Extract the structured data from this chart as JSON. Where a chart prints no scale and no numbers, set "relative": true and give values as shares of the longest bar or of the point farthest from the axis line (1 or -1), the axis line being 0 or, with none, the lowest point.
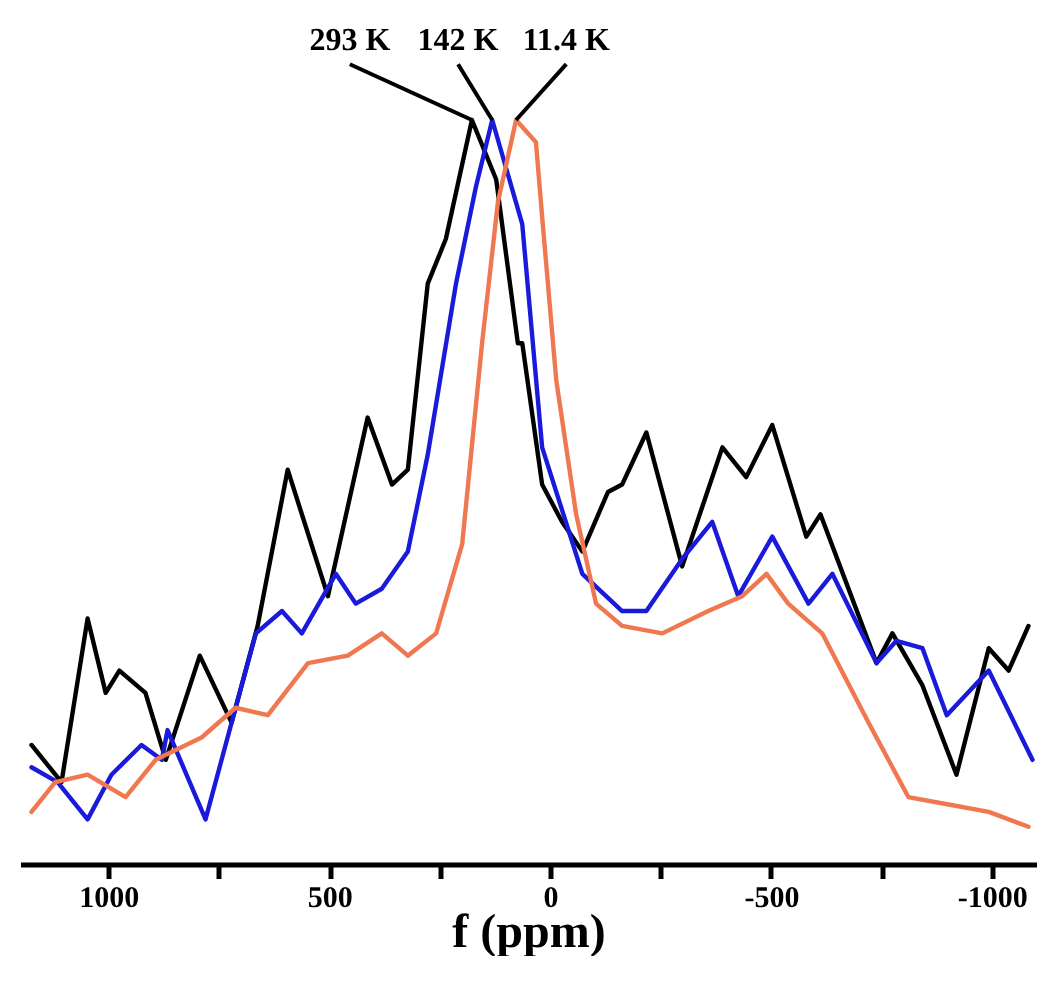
{
  "chart_data": {
    "type": "line",
    "xlabel": "f (ppm)",
    "relative": true,
    "xlim": [
      1200,
      -1100
    ],
    "xticks": [
      1000,
      {
        "value": 750,
        "label": null
      },
      500,
      {
        "value": 250,
        "label": null
      },
      0,
      {
        "value": -250,
        "label": null
      },
      -500,
      {
        "value": -750,
        "label": null
      },
      -1000
    ],
    "grid": false,
    "legend": false,
    "marker": "none",
    "line_style": "solid",
    "series": [
      {
        "name": "293 K",
        "color": "#000000",
        "x": [
          1174,
          1106,
          1047,
          1006,
          975,
          916,
          870,
          793,
          721,
          662,
          594,
          503,
          413,
          358,
          322,
          277,
          236,
          177,
          122,
          73,
          63,
          18,
          -27,
          -73,
          -131,
          -163,
          -218,
          -299,
          -390,
          -444,
          -503,
          -580,
          -612,
          -739,
          -775,
          -843,
          -920,
          -993,
          -1038,
          -1083
        ],
        "values": [
          0.16,
          0.11,
          0.33,
          0.23,
          0.26,
          0.23,
          0.14,
          0.28,
          0.19,
          0.32,
          0.53,
          0.36,
          0.6,
          0.51,
          0.53,
          0.78,
          0.84,
          1.0,
          0.92,
          0.7,
          0.7,
          0.51,
          0.46,
          0.42,
          0.5,
          0.51,
          0.58,
          0.4,
          0.56,
          0.52,
          0.59,
          0.44,
          0.47,
          0.27,
          0.31,
          0.24,
          0.12,
          0.29,
          0.26,
          0.32
        ]
      },
      {
        "name": "142 K",
        "color": "#1a1adb",
        "x": [
          1174,
          1115,
          1047,
          993,
          925,
          879,
          866,
          780,
          721,
          666,
          607,
          562,
          485,
          440,
          381,
          322,
          277,
          213,
          168,
          131,
          63,
          18,
          -73,
          -163,
          -218,
          -299,
          -367,
          -426,
          -503,
          -585,
          -639,
          -739,
          -784,
          -843,
          -898,
          -993,
          -1092
        ],
        "values": [
          0.13,
          0.11,
          0.06,
          0.12,
          0.16,
          0.14,
          0.18,
          0.06,
          0.19,
          0.31,
          0.34,
          0.31,
          0.39,
          0.35,
          0.37,
          0.42,
          0.55,
          0.78,
          0.91,
          1.0,
          0.86,
          0.56,
          0.39,
          0.34,
          0.34,
          0.41,
          0.46,
          0.36,
          0.44,
          0.35,
          0.39,
          0.27,
          0.3,
          0.29,
          0.2,
          0.26,
          0.14
        ]
      },
      {
        "name": "11.4 K",
        "color": "#f07850",
        "x": [
          1174,
          1120,
          1047,
          961,
          893,
          789,
          712,
          639,
          548,
          458,
          381,
          322,
          258,
          199,
          154,
          118,
          77,
          32,
          18,
          -14,
          -59,
          -104,
          -163,
          -254,
          -358,
          -435,
          -490,
          -539,
          -616,
          -721,
          -811,
          -902,
          -993,
          -1083
        ],
        "values": [
          0.07,
          0.11,
          0.12,
          0.09,
          0.14,
          0.17,
          0.21,
          0.2,
          0.27,
          0.28,
          0.31,
          0.28,
          0.31,
          0.43,
          0.7,
          0.89,
          1.0,
          0.97,
          0.87,
          0.65,
          0.47,
          0.35,
          0.32,
          0.31,
          0.34,
          0.36,
          0.39,
          0.35,
          0.31,
          0.19,
          0.09,
          0.08,
          0.07,
          0.05
        ]
      }
    ]
  }
}
